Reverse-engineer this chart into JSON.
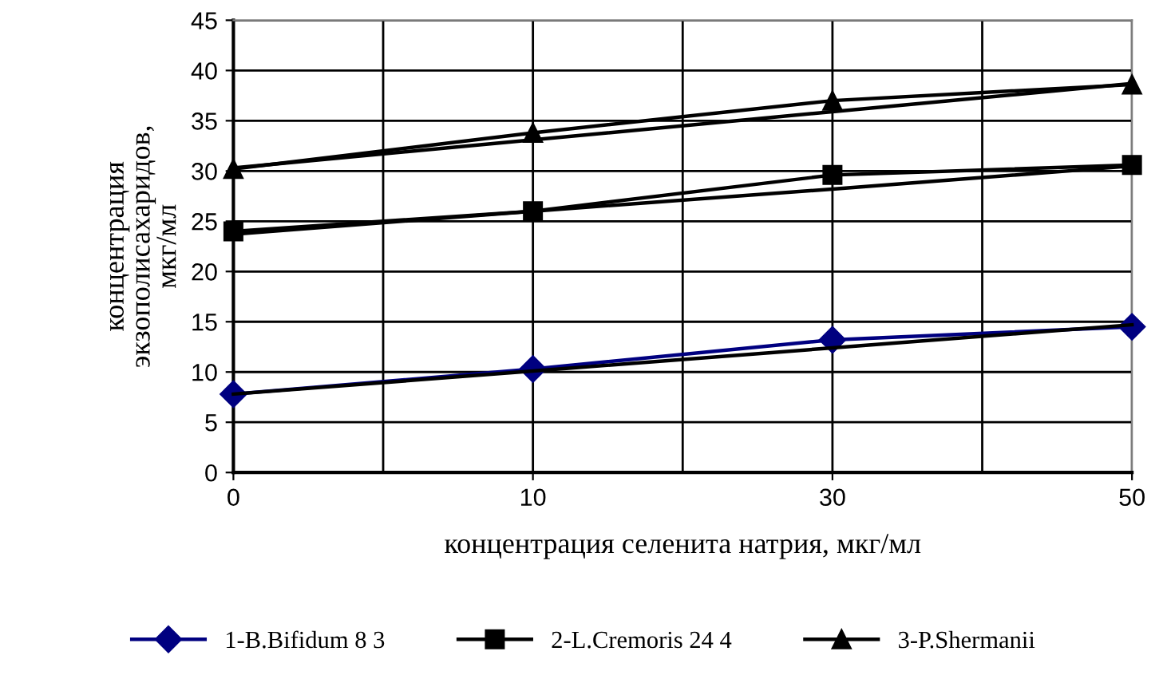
{
  "chart_data": {
    "type": "line",
    "xlabel": "концентрация селенита натрия, мкг/мл",
    "ylabel": "концентрация\nэкзополисахаридов,\nмкг/мл",
    "categories": [
      "0",
      "10",
      "30",
      "50"
    ],
    "ylim": [
      0,
      45
    ],
    "yticks": [
      0,
      5,
      10,
      15,
      20,
      25,
      30,
      35,
      40,
      45
    ],
    "grid": true,
    "legend": "bottom",
    "series": [
      {
        "name": "1-B.Bifidum 8 3",
        "color": "#000080",
        "marker": "diamond",
        "values": [
          7.8,
          10.3,
          13.2,
          14.5
        ]
      },
      {
        "name": "2-L.Cremoris 24 4",
        "color": "#000000",
        "marker": "square",
        "values": [
          24,
          26,
          29.6,
          30.6
        ]
      },
      {
        "name": "3-P.Shermanii",
        "color": "#000000",
        "marker": "triangle",
        "values": [
          30.2,
          33.8,
          37,
          38.6
        ]
      },
      {
        "color": "#000000",
        "marker": "none",
        "values": [
          7.8,
          10.1,
          12.4,
          14.7
        ]
      },
      {
        "color": "#000000",
        "marker": "none",
        "values": [
          23.7,
          26.0,
          28.2,
          30.5
        ]
      },
      {
        "color": "#000000",
        "marker": "none",
        "values": [
          30.3,
          33.1,
          35.9,
          38.7
        ]
      }
    ]
  }
}
